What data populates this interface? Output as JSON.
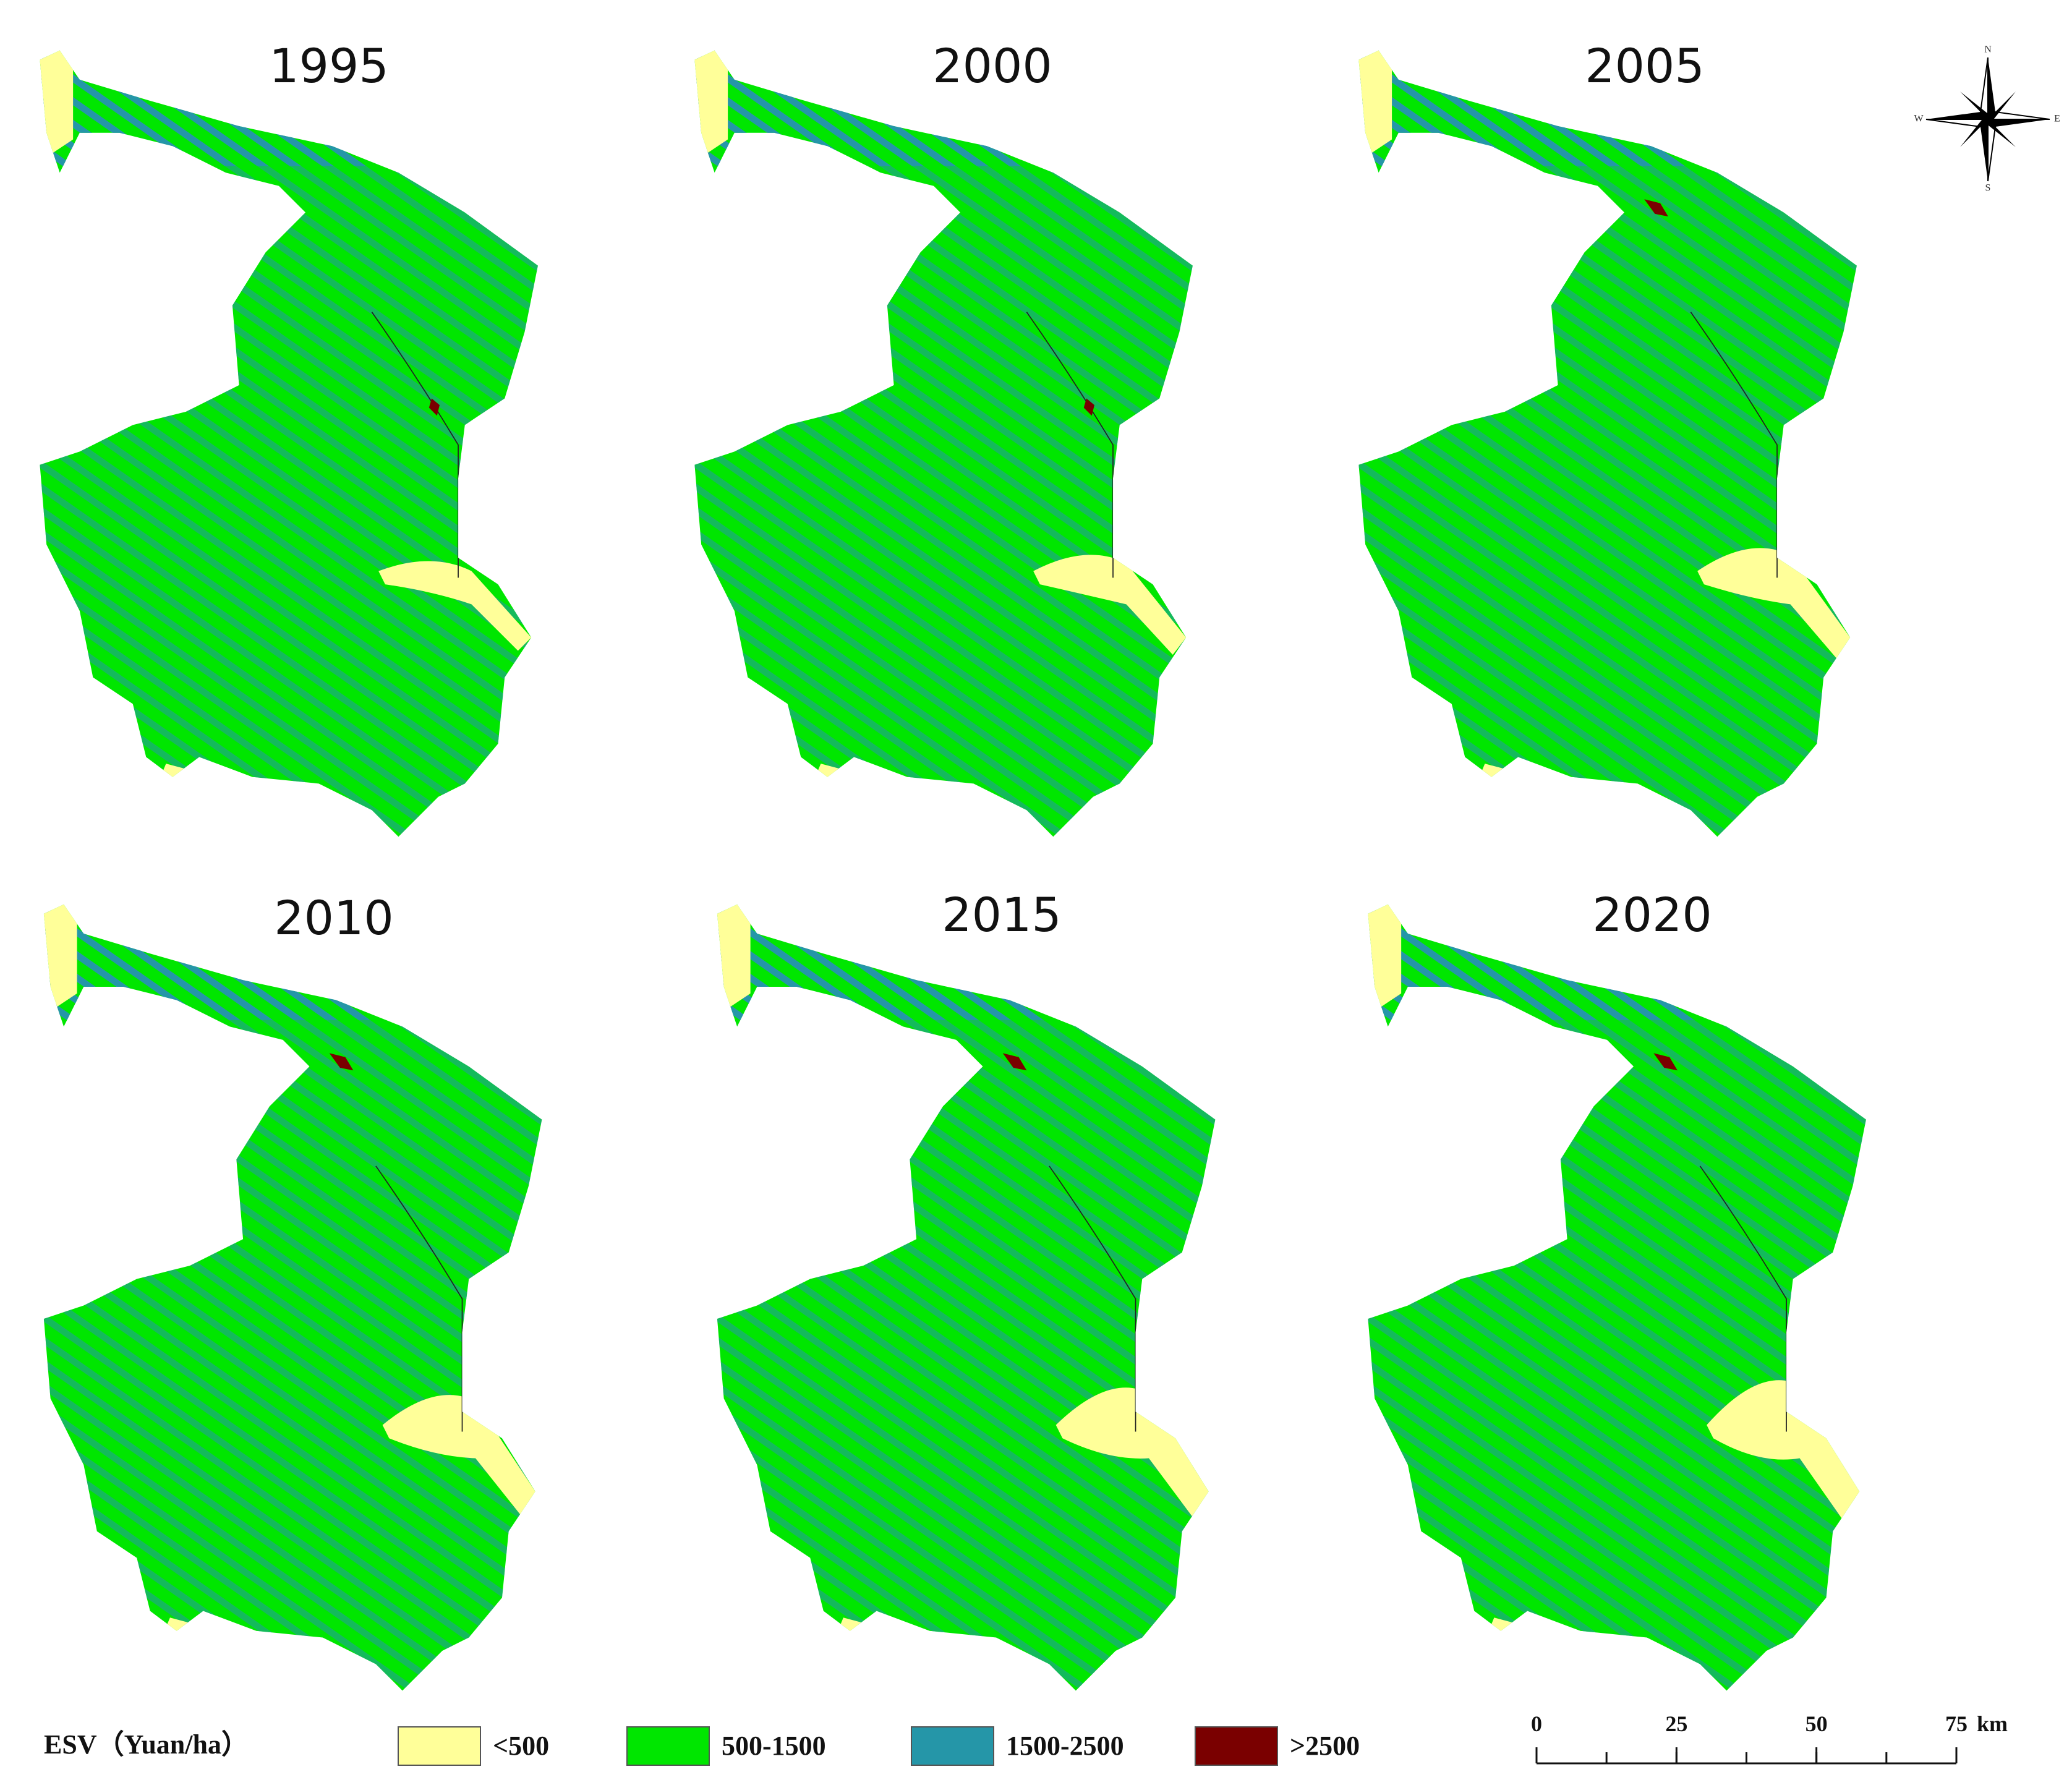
{
  "panels": [
    {
      "title": "1995"
    },
    {
      "title": "2000"
    },
    {
      "title": "2005"
    },
    {
      "title": "2010"
    },
    {
      "title": "2015"
    },
    {
      "title": "2020"
    }
  ],
  "legend": {
    "title": "ESV（Yuan/ha）",
    "items": [
      {
        "label": "<500",
        "color": "#ffff99"
      },
      {
        "label": "500-1500",
        "color": "#00e600"
      },
      {
        "label": "1500-2500",
        "color": "#2596a8"
      },
      {
        "label": ">2500",
        "color": "#7a0000"
      }
    ]
  },
  "scale_bar": {
    "ticks": [
      0,
      25,
      50,
      75
    ],
    "unit": "km"
  },
  "compass": {
    "n": "N",
    "s": "S",
    "e": "E",
    "w": "W"
  }
}
